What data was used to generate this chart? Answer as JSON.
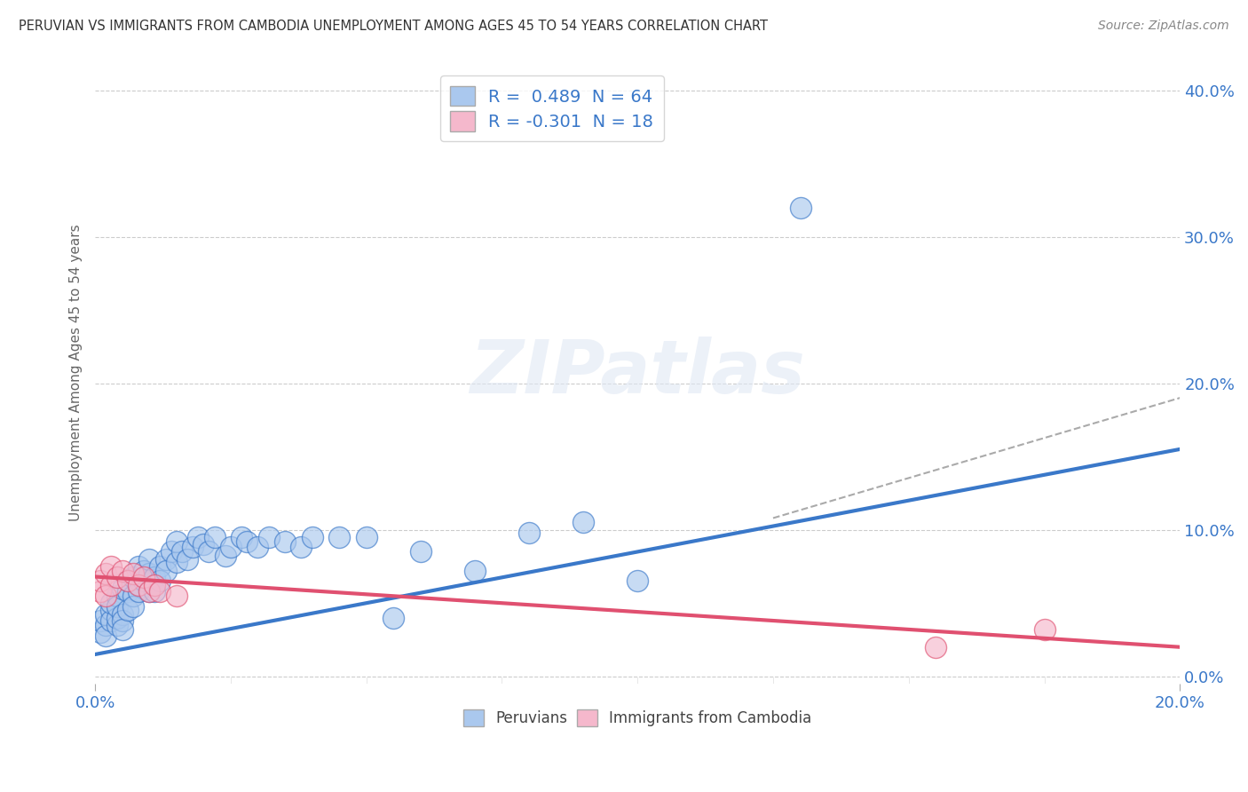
{
  "title": "PERUVIAN VS IMMIGRANTS FROM CAMBODIA UNEMPLOYMENT AMONG AGES 45 TO 54 YEARS CORRELATION CHART",
  "source": "Source: ZipAtlas.com",
  "ylabel": "Unemployment Among Ages 45 to 54 years",
  "xlim": [
    0.0,
    0.2
  ],
  "ylim": [
    -0.005,
    0.42
  ],
  "xticks": [
    0.0,
    0.2
  ],
  "yticks": [
    0.0,
    0.1,
    0.2,
    0.3,
    0.4
  ],
  "background_color": "#ffffff",
  "grid_color": "#cccccc",
  "peruvian_color": "#aac8ee",
  "cambodia_color": "#f5b8cc",
  "peruvian_line_color": "#3a78c9",
  "cambodia_line_color": "#e05070",
  "R_peruvian": 0.489,
  "N_peruvian": 64,
  "R_cambodia": -0.301,
  "N_cambodia": 18,
  "blue_line_x0": 0.0,
  "blue_line_y0": 0.015,
  "blue_line_x1": 0.2,
  "blue_line_y1": 0.155,
  "pink_line_x0": 0.0,
  "pink_line_y0": 0.068,
  "pink_line_x1": 0.2,
  "pink_line_y1": 0.02,
  "dash_line_x0": 0.125,
  "dash_line_y0": 0.108,
  "dash_line_x1": 0.2,
  "dash_line_y1": 0.19,
  "peruvians_x": [
    0.001,
    0.001,
    0.002,
    0.002,
    0.002,
    0.003,
    0.003,
    0.003,
    0.004,
    0.004,
    0.004,
    0.004,
    0.005,
    0.005,
    0.005,
    0.005,
    0.006,
    0.006,
    0.006,
    0.007,
    0.007,
    0.007,
    0.008,
    0.008,
    0.008,
    0.009,
    0.009,
    0.01,
    0.01,
    0.01,
    0.011,
    0.011,
    0.012,
    0.012,
    0.013,
    0.013,
    0.014,
    0.015,
    0.015,
    0.016,
    0.017,
    0.018,
    0.019,
    0.02,
    0.021,
    0.022,
    0.024,
    0.025,
    0.027,
    0.028,
    0.03,
    0.032,
    0.035,
    0.038,
    0.04,
    0.045,
    0.05,
    0.055,
    0.06,
    0.07,
    0.08,
    0.09,
    0.1,
    0.13
  ],
  "peruvians_y": [
    0.03,
    0.038,
    0.035,
    0.042,
    0.028,
    0.045,
    0.038,
    0.05,
    0.035,
    0.04,
    0.055,
    0.048,
    0.042,
    0.06,
    0.038,
    0.032,
    0.058,
    0.045,
    0.065,
    0.055,
    0.068,
    0.048,
    0.062,
    0.075,
    0.058,
    0.065,
    0.072,
    0.058,
    0.07,
    0.08,
    0.068,
    0.058,
    0.075,
    0.065,
    0.08,
    0.072,
    0.085,
    0.078,
    0.092,
    0.085,
    0.08,
    0.088,
    0.095,
    0.09,
    0.085,
    0.095,
    0.082,
    0.088,
    0.095,
    0.092,
    0.088,
    0.095,
    0.092,
    0.088,
    0.095,
    0.095,
    0.095,
    0.04,
    0.085,
    0.072,
    0.098,
    0.105,
    0.065,
    0.32
  ],
  "cambodia_x": [
    0.001,
    0.001,
    0.002,
    0.002,
    0.003,
    0.003,
    0.004,
    0.005,
    0.006,
    0.007,
    0.008,
    0.009,
    0.01,
    0.011,
    0.012,
    0.015,
    0.155,
    0.175
  ],
  "cambodia_y": [
    0.058,
    0.065,
    0.055,
    0.07,
    0.062,
    0.075,
    0.068,
    0.072,
    0.065,
    0.07,
    0.062,
    0.068,
    0.058,
    0.062,
    0.058,
    0.055,
    0.02,
    0.032
  ]
}
